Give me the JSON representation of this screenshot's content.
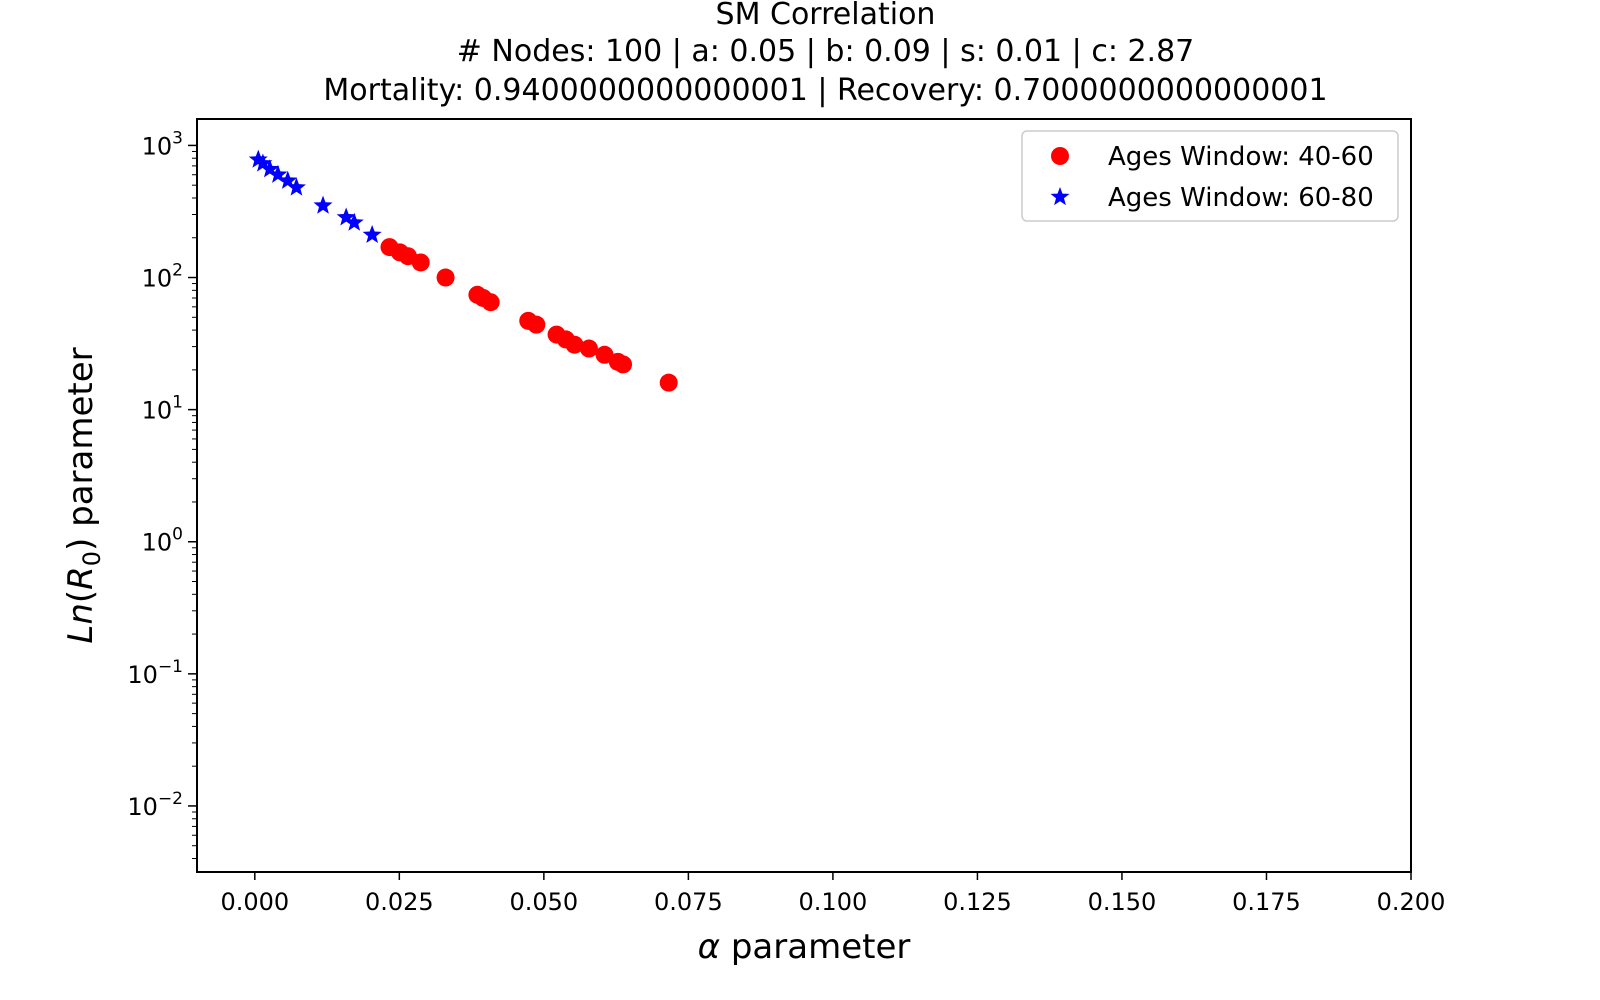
{
  "chart_data": {
    "type": "scatter",
    "title_lines": [
      "SM Correlation",
      "# Nodes: 100 | a: 0.05 | b: 0.09 | s: 0.01 | c: 2.87",
      "Mortality: 0.9400000000000001 | Recovery: 0.7000000000000001"
    ],
    "xlabel": "α parameter",
    "ylabel": "Ln(R0) parameter",
    "xlim": [
      -0.01,
      0.2
    ],
    "ylim_log10": [
      -2.5,
      3.2
    ],
    "yscale": "log",
    "x_ticks": [
      {
        "v": 0.0,
        "label": "0.000"
      },
      {
        "v": 0.025,
        "label": "0.025"
      },
      {
        "v": 0.05,
        "label": "0.050"
      },
      {
        "v": 0.075,
        "label": "0.075"
      },
      {
        "v": 0.1,
        "label": "0.100"
      },
      {
        "v": 0.125,
        "label": "0.125"
      },
      {
        "v": 0.15,
        "label": "0.150"
      },
      {
        "v": 0.175,
        "label": "0.175"
      },
      {
        "v": 0.2,
        "label": "0.200"
      }
    ],
    "y_ticks": [
      {
        "exp": -2,
        "base": "10",
        "sup": "−2"
      },
      {
        "exp": -1,
        "base": "10",
        "sup": "−1"
      },
      {
        "exp": 0,
        "base": "10",
        "sup": "0"
      },
      {
        "exp": 1,
        "base": "10",
        "sup": "1"
      },
      {
        "exp": 2,
        "base": "10",
        "sup": "2"
      },
      {
        "exp": 3,
        "base": "10",
        "sup": "3"
      }
    ],
    "legend_position": "top-right",
    "series": [
      {
        "name": "Ages Window: 40-60",
        "marker": "circle",
        "color": "#ff0000",
        "points": [
          [
            0.0233,
            170
          ],
          [
            0.0251,
            155
          ],
          [
            0.0265,
            145
          ],
          [
            0.0287,
            130
          ],
          [
            0.033,
            100
          ],
          [
            0.0385,
            74
          ],
          [
            0.0395,
            70
          ],
          [
            0.0408,
            65
          ],
          [
            0.0473,
            47
          ],
          [
            0.0487,
            44
          ],
          [
            0.0522,
            37
          ],
          [
            0.0538,
            34
          ],
          [
            0.0553,
            31
          ],
          [
            0.0578,
            29
          ],
          [
            0.0605,
            26
          ],
          [
            0.0628,
            23
          ],
          [
            0.0637,
            22
          ],
          [
            0.0716,
            16
          ]
        ]
      },
      {
        "name": "Ages Window: 60-80",
        "marker": "star",
        "color": "#0000ff",
        "points": [
          [
            0.0006,
            780
          ],
          [
            0.0014,
            730
          ],
          [
            0.0026,
            660
          ],
          [
            0.004,
            600
          ],
          [
            0.0057,
            540
          ],
          [
            0.0072,
            480
          ],
          [
            0.0118,
            350
          ],
          [
            0.0158,
            285
          ],
          [
            0.0172,
            260
          ],
          [
            0.0203,
            210
          ]
        ]
      }
    ]
  }
}
